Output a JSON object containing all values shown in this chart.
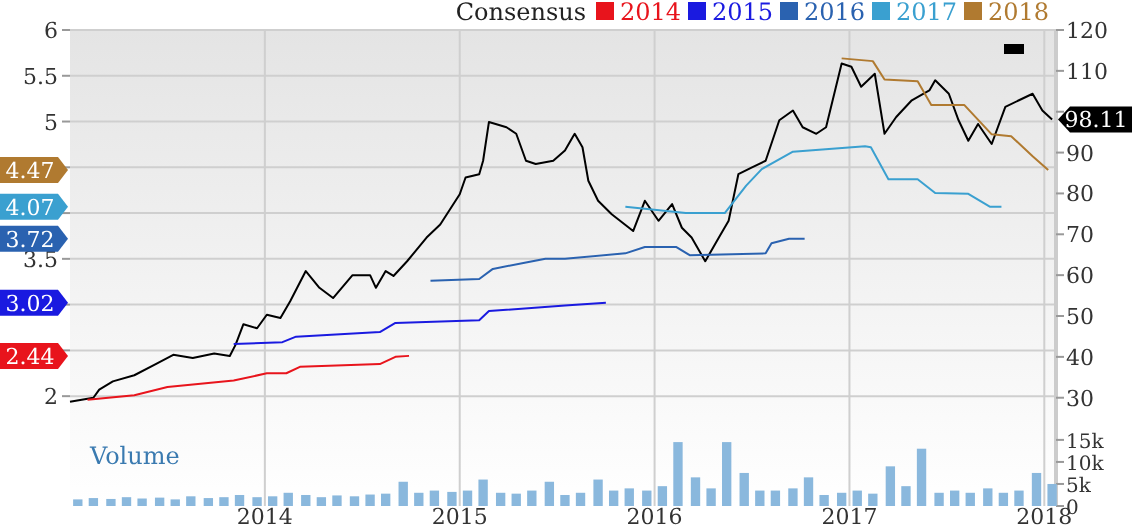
{
  "chart_data": {
    "type": "line",
    "legend_title": "Consensus",
    "legend": "top right",
    "grid": true,
    "xlim": [
      2013.0,
      2018.06
    ],
    "xticks": [
      2014,
      2015,
      2016,
      2017,
      2018
    ],
    "ylim": [
      0.8,
      6
    ],
    "yticks": [
      2,
      {
        "value": 2.5,
        "label": null
      },
      {
        "value": 3,
        "label": null
      },
      3.5,
      {
        "value": 4,
        "label": null
      },
      {
        "value": 4.5,
        "label": null
      },
      5,
      5.5,
      6
    ],
    "y2lim": [
      3.5,
      120
    ],
    "y2ticks": [
      30,
      40,
      50,
      60,
      70,
      80,
      90,
      {
        "value": 100,
        "label": null
      },
      110,
      120
    ],
    "y3lim": [
      0,
      108000
    ],
    "annotations": [
      {
        "text": "4.47",
        "y": 4.47
      },
      {
        "text": "4.07",
        "y": 4.07
      },
      {
        "text": "3.72",
        "y": 3.72
      },
      {
        "text": "3.02",
        "y": 3.02
      },
      {
        "text": "2.44",
        "y": 2.44
      }
    ],
    "y3ticks": [
      {
        "value": 0,
        "label": "0"
      },
      {
        "value": 5000,
        "label": "5k"
      },
      {
        "value": 10000,
        "label": "10k"
      },
      {
        "value": 15000,
        "label": "15k"
      }
    ],
    "y3label": "Volume",
    "series": [
      {
        "type": "bar",
        "axis": "y3",
        "color": "#8ab8dd",
        "x": [
          2013.04,
          2013.12,
          2013.21,
          2013.29,
          2013.37,
          2013.46,
          2013.54,
          2013.62,
          2013.71,
          2013.79,
          2013.87,
          2013.96,
          2014.04,
          2014.12,
          2014.21,
          2014.29,
          2014.37,
          2014.46,
          2014.54,
          2014.62,
          2014.71,
          2014.79,
          2014.87,
          2014.96,
          2015.04,
          2015.12,
          2015.21,
          2015.29,
          2015.37,
          2015.46,
          2015.54,
          2015.62,
          2015.71,
          2015.79,
          2015.87,
          2015.96,
          2016.04,
          2016.12,
          2016.21,
          2016.29,
          2016.37,
          2016.46,
          2016.54,
          2016.62,
          2016.71,
          2016.79,
          2016.87,
          2016.96,
          2017.04,
          2017.12,
          2017.21,
          2017.29,
          2017.37,
          2017.46,
          2017.54,
          2017.62,
          2017.71,
          2017.79,
          2017.87,
          2017.96,
          2018.04
        ],
        "values": [
          1500,
          1800,
          1600,
          2000,
          1700,
          1900,
          1500,
          2200,
          1800,
          2000,
          2500,
          2000,
          2200,
          3000,
          2500,
          2000,
          2400,
          2200,
          2600,
          2800,
          5500,
          3000,
          3500,
          3200,
          3500,
          6000,
          3000,
          2800,
          3500,
          5500,
          2500,
          3000,
          6000,
          3500,
          4000,
          3500,
          4500,
          14500,
          6500,
          4000,
          14500,
          7500,
          3500,
          3500,
          4000,
          6500,
          2500,
          3000,
          3500,
          2800,
          9000,
          4500,
          13000,
          3000,
          3500,
          3000,
          4000,
          3000,
          3500,
          7500,
          5000
        ]
      },
      {
        "axis": "y2",
        "color": "#000000",
        "x": [
          2013.0,
          2013.12,
          2013.15,
          2013.22,
          2013.33,
          2013.43,
          2013.53,
          2013.63,
          2013.74,
          2013.82,
          2013.85,
          2013.89,
          2013.96,
          2014.01,
          2014.08,
          2014.13,
          2014.21,
          2014.28,
          2014.35,
          2014.45,
          2014.54,
          2014.57,
          2014.62,
          2014.66,
          2014.73,
          2014.83,
          2014.9,
          2015.0,
          2015.03,
          2015.1,
          2015.12,
          2015.15,
          2015.24,
          2015.29,
          2015.34,
          2015.39,
          2015.48,
          2015.54,
          2015.58,
          2015.59,
          2015.63,
          2015.66,
          2015.71,
          2015.78,
          2015.89,
          2015.95,
          2016.02,
          2016.09,
          2016.14,
          2016.19,
          2016.26,
          2016.33,
          2016.38,
          2016.43,
          2016.5,
          2016.57,
          2016.64,
          2016.71,
          2016.76,
          2016.83,
          2016.88,
          2016.96,
          2017.01,
          2017.06,
          2017.13,
          2017.18,
          2017.24,
          2017.32,
          2017.41,
          2017.44,
          2017.51,
          2017.56,
          2017.61,
          2017.66,
          2017.73,
          2017.8,
          2017.87,
          2017.94,
          2017.99,
          2018.04
        ],
        "values": [
          29,
          30,
          32,
          34,
          35.5,
          38,
          40.5,
          39.7,
          40.8,
          40.2,
          43,
          48,
          47,
          50.3,
          49.5,
          53.6,
          61,
          56.9,
          54.4,
          60,
          60,
          56.9,
          61,
          59.8,
          63.4,
          69.2,
          72.4,
          79.8,
          83.9,
          84.7,
          88,
          97.5,
          96.2,
          94.6,
          88,
          87.2,
          88,
          90.5,
          93.8,
          94.6,
          91.3,
          83.1,
          78.2,
          74.9,
          70.8,
          78.2,
          73.3,
          77.4,
          71.6,
          69.2,
          63.4,
          69.2,
          73.3,
          84.7,
          86.4,
          88,
          97.9,
          100.3,
          96.2,
          94.6,
          96.2,
          111.8,
          111,
          106.1,
          109.3,
          94.6,
          98.7,
          102.8,
          105.2,
          107.7,
          104.4,
          97.9,
          92.9,
          97,
          92.1,
          101.2,
          102.8,
          104.4,
          100.3,
          98.11
        ],
        "value_labels": [
          null,
          null,
          null,
          null,
          null,
          null,
          null,
          null,
          null,
          null,
          null,
          null,
          null,
          null,
          null,
          null,
          null,
          null,
          null,
          null,
          null,
          null,
          null,
          null,
          null,
          null,
          null,
          null,
          null,
          null,
          null,
          null,
          null,
          null,
          null,
          null,
          null,
          null,
          null,
          null,
          null,
          null,
          null,
          null,
          null,
          null,
          null,
          null,
          null,
          null,
          null,
          null,
          null,
          null,
          null,
          null,
          null,
          null,
          null,
          null,
          null,
          null,
          null,
          null,
          null,
          null,
          null,
          null,
          null,
          null,
          null,
          null,
          null,
          null,
          null,
          null,
          null,
          null,
          null,
          "98.11"
        ]
      },
      {
        "name": "2014",
        "color": "#e8141c",
        "x": [
          2013.09,
          2013.33,
          2013.5,
          2013.84,
          2014.01,
          2014.11,
          2014.18,
          2014.59,
          2014.67,
          2014.74
        ],
        "values": [
          1.96,
          2.01,
          2.1,
          2.17,
          2.25,
          2.25,
          2.32,
          2.35,
          2.43,
          2.44
        ]
      },
      {
        "name": "2015",
        "color": "#1a1ae0",
        "x": [
          2013.84,
          2014.09,
          2014.16,
          2014.59,
          2014.67,
          2015.1,
          2015.15,
          2015.54,
          2015.75
        ],
        "values": [
          2.57,
          2.59,
          2.65,
          2.7,
          2.8,
          2.83,
          2.93,
          2.99,
          3.02
        ]
      },
      {
        "name": "2016",
        "color": "#2a62b0",
        "x": [
          2014.85,
          2015.1,
          2015.17,
          2015.34,
          2015.44,
          2015.54,
          2015.85,
          2015.95,
          2016.11,
          2016.18,
          2016.57,
          2016.6,
          2016.69,
          2016.77
        ],
        "values": [
          3.26,
          3.28,
          3.39,
          3.46,
          3.5,
          3.5,
          3.56,
          3.63,
          3.63,
          3.54,
          3.56,
          3.67,
          3.72,
          3.72
        ]
      },
      {
        "name": "2017",
        "color": "#3aa0d0",
        "x": [
          2015.85,
          2016.16,
          2016.36,
          2016.47,
          2016.55,
          2016.71,
          2017.08,
          2017.11,
          2017.2,
          2017.35,
          2017.44,
          2017.61,
          2017.72,
          2017.78
        ],
        "values": [
          4.07,
          4.0,
          4.0,
          4.3,
          4.48,
          4.67,
          4.73,
          4.72,
          4.37,
          4.37,
          4.22,
          4.21,
          4.07,
          4.07
        ]
      },
      {
        "name": "2018",
        "color": "#b07a30",
        "x": [
          2016.96,
          2017.12,
          2017.18,
          2017.35,
          2017.42,
          2017.59,
          2017.73,
          2017.83,
          2017.94,
          2018.02
        ],
        "values": [
          5.69,
          5.66,
          5.46,
          5.44,
          5.18,
          5.18,
          4.86,
          4.84,
          4.62,
          4.47
        ]
      }
    ]
  }
}
